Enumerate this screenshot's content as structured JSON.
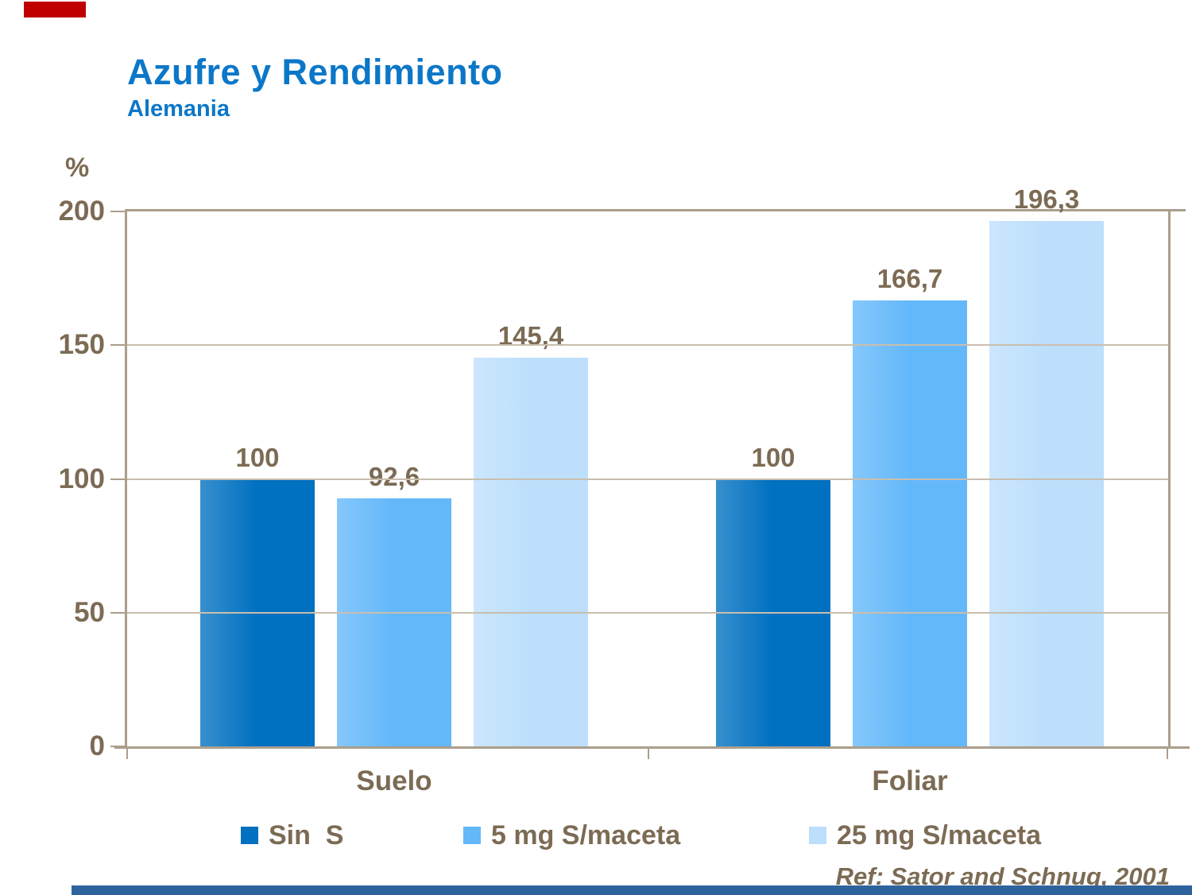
{
  "slide": {
    "title": "Azufre y Rendimiento",
    "subtitle": "Alemania",
    "reference": "Ref: Sator and Schnug, 2001",
    "accent_color": "#C00000",
    "bottom_rule_color": "#2F639E",
    "title_color": "#0C77C8",
    "text_color": "#7C6B54"
  },
  "chart_data": {
    "type": "bar",
    "title": "Azufre y Rendimiento",
    "subtitle": "Alemania",
    "unit_label": "%",
    "categories": [
      "Suelo",
      "Foliar"
    ],
    "series": [
      {
        "name": "Sin  S",
        "color": "#0070C0",
        "values": [
          100,
          100
        ],
        "value_labels": [
          "100",
          "100"
        ]
      },
      {
        "name": "5 mg S/maceta",
        "color": "#63B8FA",
        "values": [
          92.6,
          166.7
        ],
        "value_labels": [
          "92,6",
          "166,7"
        ]
      },
      {
        "name": "25 mg S/maceta",
        "color": "#BDDFFC",
        "values": [
          145.4,
          196.3
        ],
        "value_labels": [
          "145,4",
          "196,3"
        ]
      }
    ],
    "ylim": [
      0,
      200
    ],
    "yticks": [
      0,
      50,
      100,
      150,
      200
    ],
    "grid": true,
    "legend_position": "bottom",
    "frame_color": "#AB9E8C",
    "gridline_color": "#C9BEAE"
  }
}
